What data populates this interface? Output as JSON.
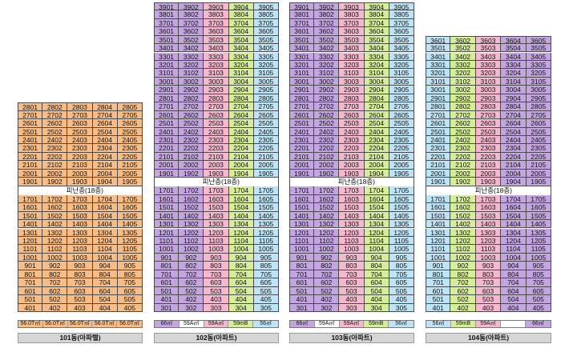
{
  "buildings": [
    {
      "name": "101동(아파텔)",
      "pilotis_label": "피난층(18층)",
      "top_floor": 28,
      "bottom_floor": 4,
      "refuge_floor": 18,
      "units_per_floor": 5,
      "column_colors": [
        "#f8bd86",
        "#f8bd86",
        "#f8bd86",
        "#f8bd86",
        "#f8bd86"
      ],
      "areas": [
        "56.0T㎡",
        "56.0T㎡",
        "56.0T㎡",
        "56.0T㎡",
        "56.0T㎡"
      ],
      "area_color": "#f8bd86"
    },
    {
      "name": "102동(아파트)",
      "pilotis_label": "피난층(18층)",
      "top_floor": 39,
      "bottom_floor": 3,
      "refuge_floor": 18,
      "units_per_floor": 5,
      "column_colors": [
        "#c3a6e0",
        "#c3a6e0",
        "#f4b9cf",
        "#d6ee9c",
        "#bfe4f5"
      ],
      "areas": [
        "66㎡",
        "59A㎡",
        "59A㎡",
        "59mB",
        "56㎡"
      ],
      "area_colors": [
        "#c3a6e0",
        "#ffffff",
        "#f4b9cf",
        "#d6ee9c",
        "#bfe4f5"
      ]
    },
    {
      "name": "103동(아파트)",
      "pilotis_label": "피난층(18층)",
      "top_floor": 39,
      "bottom_floor": 3,
      "refuge_floor": 18,
      "units_per_floor": 5,
      "column_colors": [
        "#c3a6e0",
        "#c3a6e0",
        "#f4b9cf",
        "#d6ee9c",
        "#bfe4f5"
      ],
      "areas": [
        "66㎡",
        "59A㎡",
        "59A㎡",
        "59mB",
        "56㎡"
      ],
      "area_colors": [
        "#c3a6e0",
        "#ffffff",
        "#f4b9cf",
        "#d6ee9c",
        "#bfe4f5"
      ]
    },
    {
      "name": "104동(아파트)",
      "pilotis_label": "피난층(18층)",
      "top_floor": 36,
      "bottom_floor": 4,
      "refuge_floor": 18,
      "units_per_floor": 5,
      "column_colors": [
        "#bfe4f5",
        "#d6ee9c",
        "#f4b9cf",
        "#c3a6e0",
        "#c3a6e0"
      ],
      "areas": [
        "56㎡",
        "59mB",
        "59A㎡",
        "",
        "66㎡"
      ],
      "area_colors": [
        "#bfe4f5",
        "#d6ee9c",
        "#f4b9cf",
        "#ffffff",
        "#c3a6e0"
      ]
    }
  ]
}
